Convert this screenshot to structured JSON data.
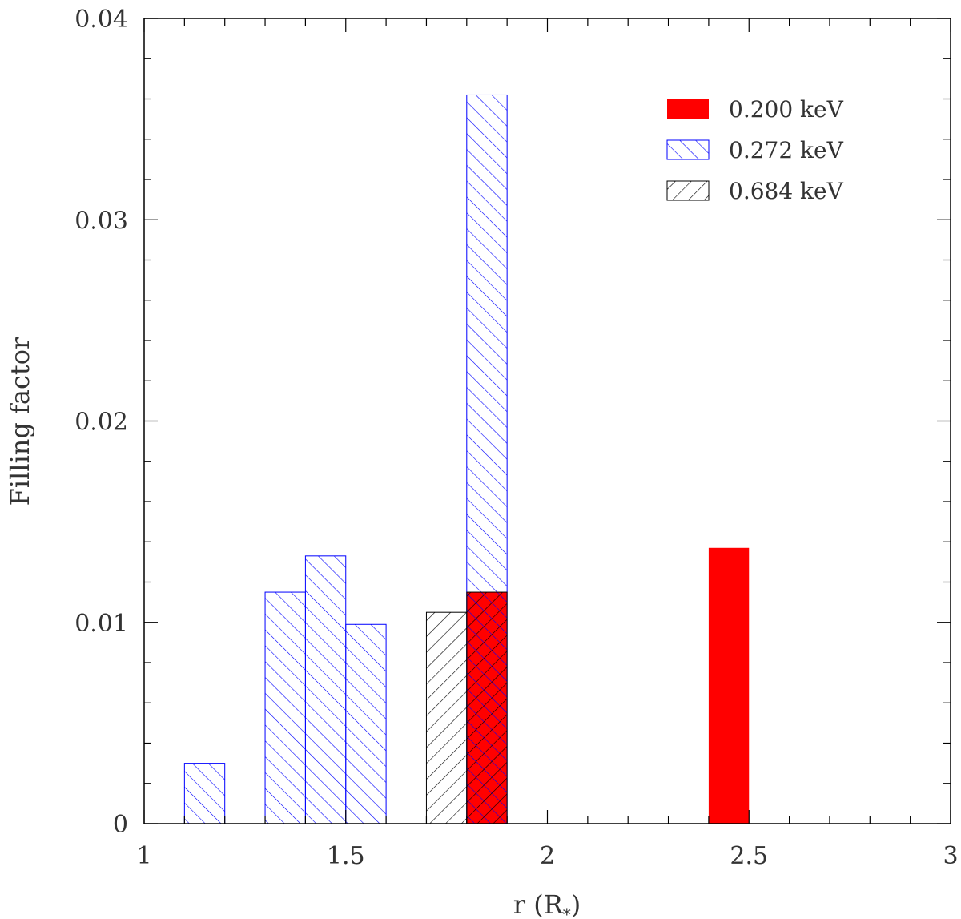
{
  "chart_data": {
    "type": "bar",
    "subtype": "histogram",
    "title": "",
    "xlabel": "r (R",
    "xlabel_subscript": "*",
    "xlabel_close": ")",
    "ylabel": "Filling factor",
    "xlim": [
      1,
      3
    ],
    "ylim": [
      0,
      0.04
    ],
    "xticks": [
      {
        "value": 1,
        "label": "1"
      },
      {
        "value": 1.5,
        "label": "1.5"
      },
      {
        "value": 2,
        "label": "2"
      },
      {
        "value": 2.5,
        "label": "2.5"
      },
      {
        "value": 3,
        "label": "3"
      }
    ],
    "yticks": [
      {
        "value": 0,
        "label": "0"
      },
      {
        "value": 0.01,
        "label": "0.01"
      },
      {
        "value": 0.02,
        "label": "0.02"
      },
      {
        "value": 0.03,
        "label": "0.03"
      },
      {
        "value": 0.04,
        "label": "0.04"
      }
    ],
    "x_minor_step": 0.1,
    "y_minor_step": 0.002,
    "grid": false,
    "legend_position": "top-right",
    "series": [
      {
        "name": "0.200 keV",
        "color": "#ff0000",
        "fill": "solid",
        "bins": [
          {
            "x0": 1.8,
            "x1": 1.9,
            "value": 0.0115
          },
          {
            "x0": 2.4,
            "x1": 2.5,
            "value": 0.0137
          }
        ]
      },
      {
        "name": "0.272 keV",
        "color": "#0000ff",
        "fill": "hatch-backslash",
        "bins": [
          {
            "x0": 1.1,
            "x1": 1.2,
            "value": 0.003
          },
          {
            "x0": 1.3,
            "x1": 1.4,
            "value": 0.0115
          },
          {
            "x0": 1.4,
            "x1": 1.5,
            "value": 0.0133
          },
          {
            "x0": 1.5,
            "x1": 1.6,
            "value": 0.0099
          },
          {
            "x0": 1.8,
            "x1": 1.9,
            "value": 0.0362
          }
        ]
      },
      {
        "name": "0.684 keV",
        "color": "#000000",
        "fill": "hatch-slash",
        "bins": [
          {
            "x0": 1.7,
            "x1": 1.8,
            "value": 0.0105
          },
          {
            "x0": 1.8,
            "x1": 1.9,
            "value": 0.0115
          }
        ]
      }
    ]
  }
}
